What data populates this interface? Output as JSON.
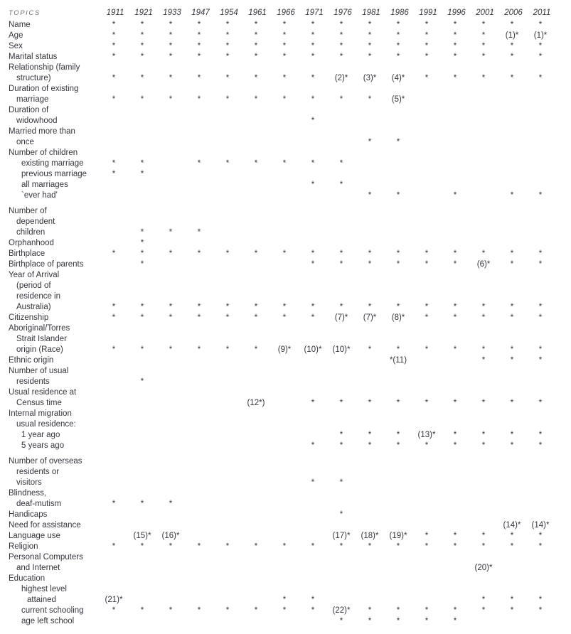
{
  "header": {
    "topics_label": "TOPICS",
    "years": [
      "1911",
      "1921",
      "1933",
      "1947",
      "1954",
      "1961",
      "1966",
      "1971",
      "1976",
      "1981",
      "1986",
      "1991",
      "1996",
      "2001",
      "2006",
      "2011"
    ]
  },
  "rows": [
    {
      "label": "Name",
      "indent": 0,
      "cells": [
        "*",
        "*",
        "*",
        "*",
        "*",
        "*",
        "*",
        "*",
        "*",
        "*",
        "*",
        "*",
        "*",
        "*",
        "*",
        "*"
      ]
    },
    {
      "label": "Age",
      "indent": 0,
      "cells": [
        "*",
        "*",
        "*",
        "*",
        "*",
        "*",
        "*",
        "*",
        "*",
        "*",
        "*",
        "*",
        "*",
        "*",
        "(1)*",
        "(1)*"
      ]
    },
    {
      "label": "Sex",
      "indent": 0,
      "cells": [
        "*",
        "*",
        "*",
        "*",
        "*",
        "*",
        "*",
        "*",
        "*",
        "*",
        "*",
        "*",
        "*",
        "*",
        "*",
        "*"
      ]
    },
    {
      "label": "Marital status",
      "indent": 0,
      "cells": [
        "*",
        "*",
        "*",
        "*",
        "*",
        "*",
        "*",
        "*",
        "*",
        "*",
        "*",
        "*",
        "*",
        "*",
        "*",
        "*"
      ]
    },
    {
      "label": "Relationship (family",
      "indent": 0,
      "cells": null
    },
    {
      "label": "structure)",
      "indent": 1,
      "cells": [
        "*",
        "*",
        "*",
        "*",
        "*",
        "*",
        "*",
        "*",
        "(2)*",
        "(3)*",
        "(4)*",
        "*",
        "*",
        "*",
        "*",
        "*"
      ]
    },
    {
      "label": "Duration of existing",
      "indent": 0,
      "cells": null
    },
    {
      "label": "marriage",
      "indent": 1,
      "cells": [
        "*",
        "*",
        "*",
        "*",
        "*",
        "*",
        "*",
        "*",
        "*",
        "*",
        "(5)*",
        "",
        "",
        "",
        "",
        ""
      ]
    },
    {
      "label": "Duration of",
      "indent": 0,
      "cells": null
    },
    {
      "label": "widowhood",
      "indent": 1,
      "cells": [
        "",
        "",
        "",
        "",
        "",
        "",
        "",
        "*",
        "",
        "",
        "",
        "",
        "",
        "",
        "",
        ""
      ]
    },
    {
      "label": "Married more than",
      "indent": 0,
      "cells": null
    },
    {
      "label": "once",
      "indent": 1,
      "cells": [
        "",
        "",
        "",
        "",
        "",
        "",
        "",
        "",
        "",
        "*",
        "*",
        "",
        "",
        "",
        "",
        ""
      ]
    },
    {
      "label": "Number of children",
      "indent": 0,
      "cells": null
    },
    {
      "label": "existing marriage",
      "indent": 2,
      "cells": [
        "*",
        "*",
        "",
        "*",
        "*",
        "*",
        "*",
        "*",
        "*",
        "",
        "",
        "",
        "",
        "",
        "",
        ""
      ]
    },
    {
      "label": "previous marriage",
      "indent": 2,
      "cells": [
        "*",
        "*",
        "",
        "",
        "",
        "",
        "",
        "",
        "",
        "",
        "",
        "",
        "",
        "",
        "",
        ""
      ]
    },
    {
      "label": "all marriages",
      "indent": 2,
      "cells": [
        "",
        "",
        "",
        "",
        "",
        "",
        "",
        "*",
        "*",
        "",
        "",
        "",
        "",
        "",
        "",
        ""
      ]
    },
    {
      "label": "`ever had'",
      "indent": 2,
      "cells": [
        "",
        "",
        "",
        "",
        "",
        "",
        "",
        "",
        "",
        "*",
        "*",
        "",
        "*",
        "",
        "*",
        "*"
      ]
    },
    {
      "label": "Number of",
      "indent": 0,
      "gap": true,
      "cells": null
    },
    {
      "label": "dependent",
      "indent": 1,
      "cells": null
    },
    {
      "label": "children",
      "indent": 1,
      "cells": [
        "",
        "*",
        "*",
        "*",
        "",
        "",
        "",
        "",
        "",
        "",
        "",
        "",
        "",
        "",
        "",
        ""
      ]
    },
    {
      "label": "Orphanhood",
      "indent": 0,
      "cells": [
        "",
        "*",
        "",
        "",
        "",
        "",
        "",
        "",
        "",
        "",
        "",
        "",
        "",
        "",
        "",
        ""
      ]
    },
    {
      "label": "Birthplace",
      "indent": 0,
      "cells": [
        "*",
        "*",
        "*",
        "*",
        "*",
        "*",
        "*",
        "*",
        "*",
        "*",
        "*",
        "*",
        "*",
        "*",
        "*",
        "*"
      ]
    },
    {
      "label": "Birthplace of parents",
      "indent": 0,
      "cells": [
        "",
        "*",
        "",
        "",
        "",
        "",
        "",
        "*",
        "*",
        "*",
        "*",
        "*",
        "*",
        "(6)*",
        "*",
        "*"
      ]
    },
    {
      "label": "Year of Arrival",
      "indent": 0,
      "cells": null
    },
    {
      "label": "(period of",
      "indent": 1,
      "cells": null
    },
    {
      "label": "residence in",
      "indent": 1,
      "cells": null
    },
    {
      "label": "Australia)",
      "indent": 1,
      "cells": [
        "*",
        "*",
        "*",
        "*",
        "*",
        "*",
        "*",
        "*",
        "*",
        "*",
        "*",
        "*",
        "*",
        "*",
        "*",
        "*"
      ]
    },
    {
      "label": "Citizenship",
      "indent": 0,
      "cells": [
        "*",
        "*",
        "*",
        "*",
        "*",
        "*",
        "*",
        "*",
        "(7)*",
        "(7)*",
        "(8)*",
        "*",
        "*",
        "*",
        "*",
        "*"
      ]
    },
    {
      "label": "Aboriginal/Torres",
      "indent": 0,
      "cells": null
    },
    {
      "label": "Strait Islander",
      "indent": 1,
      "cells": null
    },
    {
      "label": "origin (Race)",
      "indent": 1,
      "cells": [
        "*",
        "*",
        "*",
        "*",
        "*",
        "*",
        "(9)*",
        "(10)*",
        "(10)*",
        "*",
        "*",
        "*",
        "*",
        "*",
        "*",
        "*"
      ]
    },
    {
      "label": "Ethnic origin",
      "indent": 0,
      "cells": [
        "",
        "",
        "",
        "",
        "",
        "",
        "",
        "",
        "",
        "",
        "*(11)",
        "",
        "",
        "*",
        "*",
        "*"
      ]
    },
    {
      "label": "Number of usual",
      "indent": 0,
      "cells": null
    },
    {
      "label": "residents",
      "indent": 1,
      "cells": [
        "",
        "*",
        "",
        "",
        "",
        "",
        "",
        "",
        "",
        "",
        "",
        "",
        "",
        "",
        "",
        ""
      ]
    },
    {
      "label": "Usual residence at",
      "indent": 0,
      "cells": null
    },
    {
      "label": "Census time",
      "indent": 1,
      "cells": [
        "",
        "",
        "",
        "",
        "",
        "(12*)",
        "",
        "*",
        "*",
        "*",
        "*",
        "*",
        "*",
        "*",
        "*",
        "*"
      ]
    },
    {
      "label": "Internal migration",
      "indent": 0,
      "cells": null
    },
    {
      "label": "usual residence:",
      "indent": 1,
      "cells": null
    },
    {
      "label": "1 year ago",
      "indent": 2,
      "cells": [
        "",
        "",
        "",
        "",
        "",
        "",
        "",
        "",
        "*",
        "*",
        "*",
        "(13)*",
        "*",
        "*",
        "*",
        "*"
      ]
    },
    {
      "label": "5 years ago",
      "indent": 2,
      "cells": [
        "",
        "",
        "",
        "",
        "",
        "",
        "",
        "*",
        "*",
        "*",
        "*",
        "*",
        "*",
        "*",
        "*",
        "*"
      ]
    },
    {
      "label": "Number of overseas",
      "indent": 0,
      "gap": true,
      "cells": null
    },
    {
      "label": "residents or",
      "indent": 1,
      "cells": null
    },
    {
      "label": "visitors",
      "indent": 1,
      "cells": [
        "",
        "",
        "",
        "",
        "",
        "",
        "",
        "*",
        "*",
        "",
        "",
        "",
        "",
        "",
        "",
        ""
      ]
    },
    {
      "label": "Blindness,",
      "indent": 0,
      "cells": null
    },
    {
      "label": "deaf-mutism",
      "indent": 1,
      "cells": [
        "*",
        "*",
        "*",
        "",
        "",
        "",
        "",
        "",
        "",
        "",
        "",
        "",
        "",
        "",
        "",
        ""
      ]
    },
    {
      "label": "Handicaps",
      "indent": 0,
      "cells": [
        "",
        "",
        "",
        "",
        "",
        "",
        "",
        "",
        "*",
        "",
        "",
        "",
        "",
        "",
        "",
        ""
      ]
    },
    {
      "label": "Need for assistance",
      "indent": 0,
      "cells": [
        "",
        "",
        "",
        "",
        "",
        "",
        "",
        "",
        "",
        "",
        "",
        "",
        "",
        "",
        "(14)*",
        "(14)*"
      ]
    },
    {
      "label": "Language use",
      "indent": 0,
      "cells": [
        "",
        "(15)*",
        "(16)*",
        "",
        "",
        "",
        "",
        "",
        "(17)*",
        "(18)*",
        "(19)*",
        "*",
        "*",
        "*",
        "*",
        "*"
      ]
    },
    {
      "label": "Religion",
      "indent": 0,
      "cells": [
        "*",
        "*",
        "*",
        "*",
        "*",
        "*",
        "*",
        "*",
        "*",
        "*",
        "*",
        "*",
        "*",
        "*",
        "*",
        "*"
      ]
    },
    {
      "label": "Personal Computers",
      "indent": 0,
      "cells": null
    },
    {
      "label": "and Internet",
      "indent": 1,
      "cells": [
        "",
        "",
        "",
        "",
        "",
        "",
        "",
        "",
        "",
        "",
        "",
        "",
        "",
        "(20)*",
        "",
        ""
      ]
    },
    {
      "label": "Education",
      "indent": 0,
      "cells": null
    },
    {
      "label": "highest level",
      "indent": 2,
      "cells": null
    },
    {
      "label": "attained",
      "indent": 3,
      "cells": [
        "(21)*",
        "",
        "",
        "",
        "",
        "",
        "*",
        "*",
        "",
        "",
        "",
        "",
        "",
        "*",
        "*",
        "*"
      ]
    },
    {
      "label": "current schooling",
      "indent": 2,
      "cells": [
        "*",
        "*",
        "*",
        "*",
        "*",
        "*",
        "*",
        "*",
        "(22)*",
        "*",
        "*",
        "*",
        "*",
        "*",
        "*",
        "*"
      ]
    },
    {
      "label": "age left school",
      "indent": 2,
      "cells": [
        "",
        "",
        "",
        "",
        "",
        "",
        "",
        "",
        "*",
        "*",
        "*",
        "*",
        "*",
        "",
        "",
        ""
      ]
    }
  ]
}
